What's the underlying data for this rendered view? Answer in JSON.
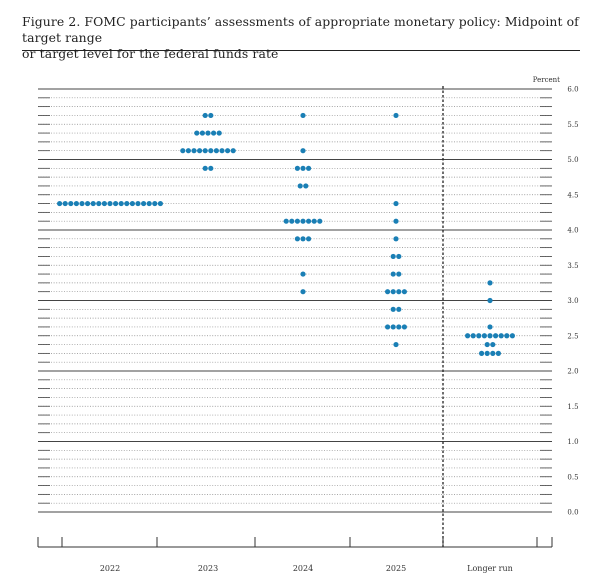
{
  "figure": {
    "title_line1": "Figure 2.  FOMC participants’ assessments of appropriate monetary policy:  Midpoint of target range",
    "title_line2": "or target level for the federal funds rate"
  },
  "chart_data": {
    "type": "scatter",
    "subtype": "dot-plot",
    "ylabel": "Percent",
    "ylim": [
      0.0,
      6.0
    ],
    "ytick_step": 0.125,
    "ylabel_ticks": [
      "0.0",
      "0.5",
      "1.0",
      "1.5",
      "2.0",
      "2.5",
      "3.0",
      "3.5",
      "4.0",
      "4.5",
      "5.0",
      "5.5",
      "6.0"
    ],
    "ylabel_tick_values": [
      0.0,
      0.5,
      1.0,
      1.5,
      2.0,
      2.5,
      3.0,
      3.5,
      4.0,
      4.5,
      5.0,
      5.5,
      6.0
    ],
    "categories": [
      "2022",
      "2023",
      "2024",
      "2025",
      "Longer run"
    ],
    "separator_after_category": 3,
    "dot_color": "#1a7fb5",
    "series": [
      {
        "category": "2022",
        "dots": [
          {
            "y": 4.375,
            "count": 19
          }
        ]
      },
      {
        "category": "2023",
        "dots": [
          {
            "y": 5.625,
            "count": 2
          },
          {
            "y": 5.375,
            "count": 5
          },
          {
            "y": 5.125,
            "count": 10
          },
          {
            "y": 4.875,
            "count": 2
          }
        ]
      },
      {
        "category": "2024",
        "dots": [
          {
            "y": 5.625,
            "count": 1
          },
          {
            "y": 5.125,
            "count": 1
          },
          {
            "y": 4.875,
            "count": 3
          },
          {
            "y": 4.625,
            "count": 2
          },
          {
            "y": 4.125,
            "count": 7
          },
          {
            "y": 3.875,
            "count": 3
          },
          {
            "y": 3.375,
            "count": 1
          },
          {
            "y": 3.125,
            "count": 1
          }
        ]
      },
      {
        "category": "2025",
        "dots": [
          {
            "y": 5.625,
            "count": 1
          },
          {
            "y": 4.375,
            "count": 1
          },
          {
            "y": 4.125,
            "count": 1
          },
          {
            "y": 3.875,
            "count": 1
          },
          {
            "y": 3.625,
            "count": 2
          },
          {
            "y": 3.375,
            "count": 2
          },
          {
            "y": 3.125,
            "count": 4
          },
          {
            "y": 2.875,
            "count": 2
          },
          {
            "y": 2.625,
            "count": 4
          },
          {
            "y": 2.375,
            "count": 1
          }
        ]
      },
      {
        "category": "Longer run",
        "dots": [
          {
            "y": 3.25,
            "count": 1
          },
          {
            "y": 3.0,
            "count": 1
          },
          {
            "y": 2.625,
            "count": 1
          },
          {
            "y": 2.5,
            "count": 9
          },
          {
            "y": 2.375,
            "count": 2
          },
          {
            "y": 2.25,
            "count": 4
          }
        ]
      }
    ],
    "grid": true,
    "legend": "none"
  }
}
